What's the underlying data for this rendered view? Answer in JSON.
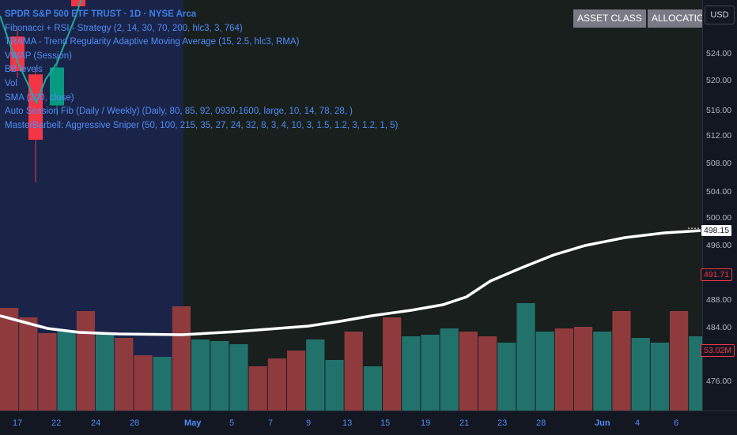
{
  "legend": {
    "title": "SPDR S&P 500 ETF TRUST · 1D · NYSE Arca",
    "indicators": [
      "Fibonacci + RSI - Strategy (2, 14, 30, 70, 200, hlc3, 3, 764)",
      "TRAMA - Trend Regularity Adaptive Moving Average (15, 2.5, hlc3, RMA)",
      "VWAP (Session)",
      "BB levels",
      "Vol",
      "SMA (200, close)",
      "Auto Session Fib (Daily / Weekly) (Daily, 80, 85, 92, 0930-1600, large, 10, 14, 78, 28, )",
      "MasterBarbell: Aggressive Sniper (50, 100, 215, 35, 27, 24, 32, 8, 3, 4, 10, 3, 1.5, 1.2, 3, 1.2, 1, 5)"
    ]
  },
  "overlay_table": {
    "headers": [
      "ASSET CLASS",
      "ALLOCATION %"
    ]
  },
  "price_axis": {
    "currency_button": "USD",
    "ticks": [
      "524.00",
      "520.00",
      "516.00",
      "512.00",
      "508.00",
      "504.00",
      "500.00",
      "496.00",
      "488.00",
      "484.00",
      "480.00",
      "476.00"
    ],
    "current_price": "498.15",
    "level_price": "491.71",
    "volume_label": "53.02M"
  },
  "time_axis": {
    "labels": [
      "17",
      "22",
      "24",
      "28",
      "May",
      "5",
      "7",
      "9",
      "13",
      "15",
      "19",
      "21",
      "23",
      "28",
      "Jun",
      "4",
      "6"
    ]
  },
  "colors": {
    "background": "#131722",
    "highlight_region": "#1a2448",
    "right_region": "#181f1d",
    "volume_up": "#21726b",
    "volume_down": "#8f3b3e",
    "candle_up": "#089981",
    "candle_down": "#f23645",
    "sma_line": "#ffffff",
    "legend_text": "#4f8df6",
    "level_color": "#f23645"
  },
  "chart_data": {
    "type": "bar",
    "volume_bars": [
      "down",
      "down",
      "down",
      "up",
      "down",
      "up",
      "down",
      "down",
      "up",
      "down",
      "up",
      "up",
      "up",
      "down",
      "down",
      "down",
      "up",
      "up",
      "down",
      "up",
      "down",
      "up",
      "up",
      "up",
      "down",
      "down",
      "up",
      "up",
      "up",
      "down",
      "down",
      "up",
      "down",
      "up",
      "up",
      "down",
      "up"
    ],
    "sma": {
      "start": 486.5,
      "trough": 483.0,
      "end": 498.15
    },
    "candles": [
      {
        "dir": "down",
        "open": 526.0,
        "close": 521.0,
        "high": 527.0,
        "low": 520.0
      },
      {
        "dir": "down",
        "open": 520.5,
        "close": 511.0,
        "high": 521.5,
        "low": 504.8
      },
      {
        "dir": "up",
        "open": 516.0,
        "close": 521.5,
        "high": 523.0,
        "low": 514.5
      }
    ]
  }
}
